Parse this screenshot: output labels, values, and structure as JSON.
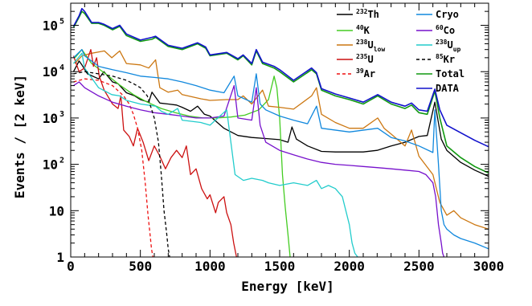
{
  "chart_data": {
    "type": "line",
    "xlabel": "Energy [keV]",
    "ylabel": "Events / [2 keV]",
    "xlim": [
      0,
      3000
    ],
    "ylim": [
      1,
      300000
    ],
    "yscale": "log",
    "x_ticks": [
      "0",
      "500",
      "1000",
      "1500",
      "2000",
      "2500",
      "3000"
    ],
    "y_ticks": [
      {
        "value": 1,
        "label": "1",
        "power": ""
      },
      {
        "value": 10,
        "label": "10",
        "power": ""
      },
      {
        "value": 100,
        "label": "10",
        "power": "2"
      },
      {
        "value": 1000,
        "label": "10",
        "power": "3"
      },
      {
        "value": 10000,
        "label": "10",
        "power": "4"
      },
      {
        "value": 100000,
        "label": "10",
        "power": "5"
      }
    ],
    "legend_position": "top-right",
    "series": [
      {
        "name": "Th",
        "sup": "232",
        "sub": "",
        "tail": "",
        "color": "#000000",
        "dash": "",
        "col": 0,
        "row": 0,
        "x": [
          20,
          60,
          80,
          120,
          200,
          238,
          300,
          340,
          400,
          460,
          500,
          560,
          583,
          640,
          700,
          760,
          800,
          860,
          911,
          960,
          1000,
          1100,
          1200,
          1300,
          1400,
          1500,
          1560,
          1588,
          1620,
          1700,
          1800,
          1900,
          2000,
          2100,
          2200,
          2300,
          2400,
          2500,
          2560,
          2614,
          2660,
          2700,
          2800,
          2900,
          3000
        ],
        "y": [
          10000,
          17000,
          14000,
          9000,
          7000,
          10000,
          6000,
          5500,
          3500,
          3000,
          2500,
          2200,
          3600,
          2100,
          2000,
          1900,
          1700,
          1400,
          1800,
          1200,
          1100,
          600,
          420,
          380,
          360,
          340,
          300,
          640,
          350,
          250,
          190,
          185,
          185,
          185,
          200,
          250,
          300,
          400,
          420,
          2200,
          350,
          200,
          110,
          75,
          55
        ]
      },
      {
        "name": "K",
        "sup": "40",
        "sub": "",
        "tail": "",
        "color": "#44cc22",
        "dash": "",
        "col": 0,
        "row": 1,
        "x": [
          30,
          80,
          150,
          250,
          350,
          450,
          550,
          650,
          750,
          850,
          950,
          1050,
          1150,
          1250,
          1350,
          1420,
          1460,
          1480,
          1500,
          1520,
          1540,
          1560,
          1575
        ],
        "y": [
          20000,
          30000,
          15000,
          9000,
          5200,
          3200,
          2200,
          1600,
          1300,
          1100,
          1000,
          1000,
          1050,
          1150,
          1500,
          2500,
          8000,
          4500,
          1000,
          60,
          12,
          3,
          1
        ]
      },
      {
        "name": "U",
        "sup": "238",
        "sub": "low",
        "tail": "",
        "color": "#cc7711",
        "dash": "",
        "col": 0,
        "row": 2,
        "x": [
          30,
          80,
          150,
          242,
          295,
          352,
          400,
          500,
          560,
          609,
          640,
          700,
          768,
          800,
          934,
          1000,
          1120,
          1200,
          1238,
          1300,
          1377,
          1420,
          1500,
          1600,
          1729,
          1764,
          1800,
          1900,
          2000,
          2100,
          2204,
          2250,
          2300,
          2400,
          2447,
          2500,
          2600,
          2650,
          2700,
          2750,
          2800,
          2900,
          3000
        ],
        "y": [
          15000,
          22000,
          25000,
          28000,
          20000,
          28000,
          15000,
          14000,
          12000,
          18000,
          4500,
          3600,
          4000,
          3200,
          2600,
          2400,
          2500,
          2500,
          3000,
          2000,
          4000,
          1800,
          1700,
          1550,
          3000,
          4500,
          1200,
          800,
          600,
          600,
          1000,
          600,
          450,
          250,
          550,
          150,
          60,
          15,
          8,
          10,
          7,
          5,
          4
        ]
      },
      {
        "name": "U",
        "sup": "235",
        "sub": "",
        "tail": "",
        "color": "#cc1111",
        "dash": "",
        "col": 0,
        "row": 3,
        "x": [
          20,
          60,
          100,
          144,
          163,
          186,
          205,
          240,
          300,
          340,
          360,
          380,
          420,
          450,
          480,
          520,
          560,
          600,
          640,
          680,
          720,
          760,
          800,
          830,
          860,
          900,
          940,
          980,
          1000,
          1040,
          1060,
          1100,
          1120,
          1150,
          1170,
          1190
        ],
        "y": [
          22000,
          10000,
          12000,
          30000,
          13000,
          20000,
          8000,
          4000,
          2000,
          1600,
          3000,
          550,
          400,
          250,
          600,
          300,
          120,
          250,
          150,
          80,
          140,
          200,
          140,
          250,
          60,
          80,
          30,
          18,
          22,
          9,
          15,
          20,
          9,
          5,
          2,
          1
        ]
      },
      {
        "name": "Ar",
        "sup": "39",
        "sub": "",
        "tail": "",
        "color": "#ee1111",
        "dash": "4,3",
        "col": 0,
        "row": 4,
        "x": [
          20,
          100,
          200,
          300,
          380,
          420,
          450,
          480,
          510,
          535,
          555,
          570,
          580,
          590
        ],
        "y": [
          6000,
          7000,
          6500,
          5000,
          3000,
          2000,
          1200,
          600,
          200,
          40,
          8,
          3,
          1.5,
          1
        ]
      },
      {
        "name": "Cryo",
        "sup": "",
        "sub": "",
        "tail": "",
        "color": "#1188dd",
        "dash": "",
        "col": 1,
        "row": 0,
        "x": [
          20,
          80,
          100,
          200,
          300,
          400,
          500,
          600,
          700,
          800,
          900,
          1000,
          1100,
          1173,
          1200,
          1300,
          1332,
          1360,
          1400,
          1500,
          1600,
          1700,
          1765,
          1800,
          2000,
          2204,
          2300,
          2400,
          2500,
          2600,
          2614,
          2640,
          2660,
          2680,
          2700,
          2750,
          2800,
          2900,
          3000
        ],
        "y": [
          20000,
          30000,
          22000,
          13000,
          11000,
          9500,
          8000,
          7500,
          7000,
          6000,
          5000,
          4000,
          3500,
          8000,
          3000,
          2200,
          9000,
          2000,
          1500,
          1100,
          900,
          750,
          1800,
          600,
          500,
          600,
          380,
          320,
          250,
          180,
          1500,
          100,
          10,
          5,
          4,
          3,
          2.5,
          2,
          1.5
        ]
      },
      {
        "name": "Co",
        "sup": "60",
        "sub": "",
        "tail": "",
        "color": "#7711cc",
        "dash": "",
        "col": 1,
        "row": 1,
        "x": [
          20,
          60,
          100,
          200,
          300,
          400,
          500,
          600,
          700,
          800,
          900,
          1000,
          1100,
          1173,
          1200,
          1300,
          1332,
          1360,
          1400,
          1500,
          1600,
          1700,
          1800,
          1900,
          2000,
          2100,
          2200,
          2300,
          2400,
          2500,
          2550,
          2600,
          2620,
          2640,
          2660,
          2670,
          2680
        ],
        "y": [
          5000,
          6000,
          4500,
          3000,
          2200,
          1800,
          1500,
          1300,
          1200,
          1100,
          1000,
          1000,
          1100,
          5000,
          1000,
          900,
          4500,
          700,
          300,
          200,
          160,
          130,
          110,
          100,
          95,
          90,
          85,
          80,
          75,
          70,
          60,
          40,
          20,
          5,
          2,
          1.2,
          1
        ]
      },
      {
        "name": "U",
        "sup": "238",
        "sub": "up",
        "tail": "",
        "color": "#22cccc",
        "dash": "",
        "col": 1,
        "row": 2,
        "x": [
          20,
          80,
          100,
          200,
          295,
          352,
          400,
          500,
          609,
          650,
          700,
          768,
          800,
          934,
          1000,
          1120,
          1180,
          1240,
          1300,
          1377,
          1420,
          1500,
          1600,
          1700,
          1764,
          1800,
          1850,
          1900,
          1950,
          2000,
          2020,
          2040,
          2060
        ],
        "y": [
          15000,
          25000,
          12000,
          4500,
          3200,
          3000,
          2400,
          2000,
          1800,
          1400,
          1200,
          1600,
          900,
          800,
          700,
          1500,
          60,
          45,
          50,
          45,
          40,
          35,
          40,
          35,
          45,
          30,
          35,
          30,
          20,
          5,
          2,
          1.2,
          1
        ]
      },
      {
        "name": "Kr",
        "sup": "85",
        "sub": "",
        "tail": "",
        "color": "#000000",
        "dash": "4,3",
        "col": 1,
        "row": 3,
        "x": [
          20,
          100,
          200,
          300,
          400,
          450,
          500,
          550,
          600,
          630,
          650,
          670,
          690,
          700,
          710
        ],
        "y": [
          9000,
          10000,
          9000,
          8000,
          6500,
          5500,
          4500,
          3000,
          1000,
          300,
          60,
          10,
          3,
          1.5,
          1
        ]
      },
      {
        "name": "Total",
        "sup": "",
        "sub": "",
        "tail": "",
        "color": "#119911",
        "dash": "",
        "col": 1,
        "row": 4,
        "x": [
          20,
          60,
          80,
          100,
          150,
          200,
          240,
          300,
          352,
          400,
          500,
          583,
          609,
          700,
          800,
          911,
          969,
          1000,
          1120,
          1200,
          1238,
          1300,
          1332,
          1377,
          1460,
          1500,
          1600,
          1729,
          1764,
          1800,
          1900,
          2000,
          2100,
          2204,
          2300,
          2400,
          2447,
          2500,
          2560,
          2614,
          2650,
          2700,
          2800,
          2900,
          3000
        ],
        "y": [
          90000,
          150000,
          200000,
          180000,
          110000,
          110000,
          100000,
          80000,
          95000,
          60000,
          45000,
          50000,
          55000,
          35000,
          30000,
          40000,
          32000,
          22000,
          25000,
          18000,
          22000,
          14000,
          28000,
          15000,
          12000,
          10000,
          6000,
          11000,
          9000,
          4000,
          3000,
          2500,
          2000,
          3000,
          2000,
          1600,
          1900,
          1300,
          1200,
          3800,
          1000,
          250,
          140,
          90,
          65
        ]
      },
      {
        "name": "DATA",
        "sup": "",
        "sub": "",
        "tail": "",
        "color": "#1111cc",
        "dash": "",
        "col": 1,
        "row": 5,
        "x": [
          20,
          60,
          80,
          100,
          150,
          200,
          240,
          300,
          352,
          400,
          500,
          583,
          609,
          700,
          800,
          911,
          969,
          1000,
          1120,
          1200,
          1238,
          1300,
          1332,
          1377,
          1460,
          1500,
          1600,
          1729,
          1764,
          1800,
          1900,
          2000,
          2100,
          2204,
          2300,
          2400,
          2447,
          2500,
          2560,
          2614,
          2650,
          2700,
          2800,
          2900,
          3000
        ],
        "y": [
          95000,
          160000,
          230000,
          200000,
          115000,
          115000,
          105000,
          85000,
          100000,
          65000,
          48000,
          55000,
          58000,
          37000,
          32000,
          42000,
          34000,
          23000,
          26000,
          19000,
          23000,
          15000,
          30000,
          16000,
          13000,
          11000,
          6500,
          12000,
          9500,
          4300,
          3300,
          2700,
          2200,
          3200,
          2200,
          1800,
          2100,
          1500,
          1400,
          4200,
          1500,
          700,
          480,
          330,
          240
        ]
      }
    ]
  }
}
